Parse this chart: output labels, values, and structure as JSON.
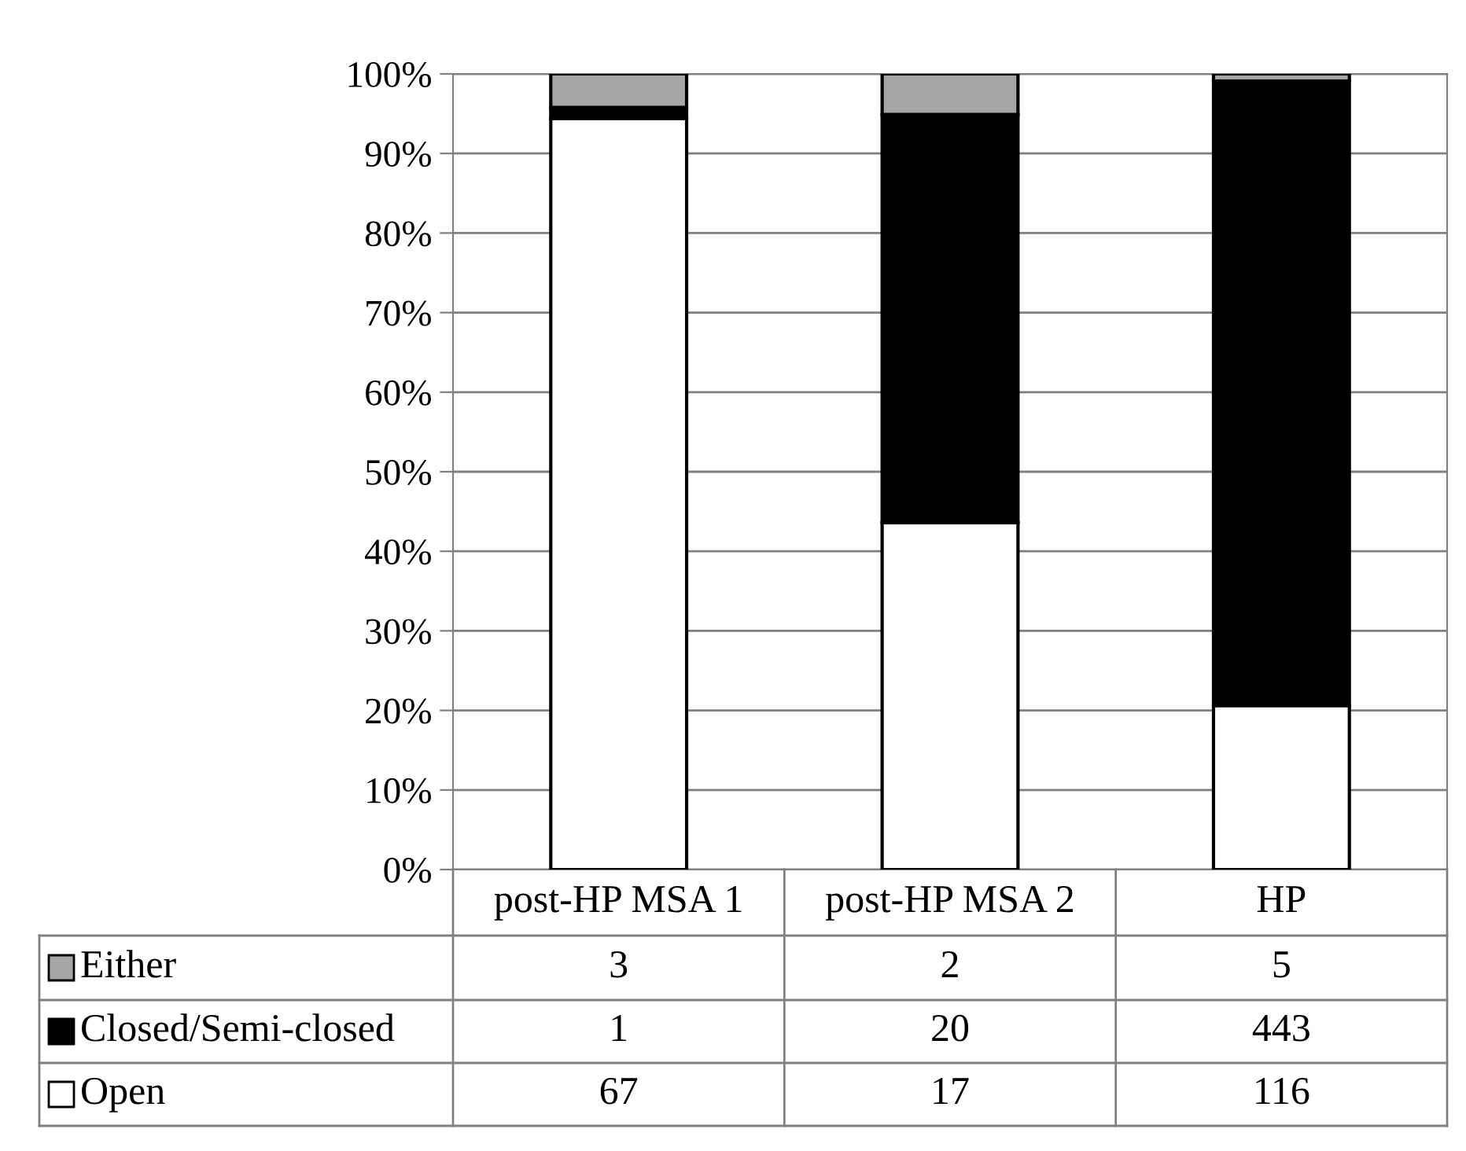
{
  "chart_data": {
    "type": "bar",
    "stacked": true,
    "categories": [
      "post-HP MSA 1",
      "post-HP MSA 2",
      "HP"
    ],
    "series": [
      {
        "name": "Open",
        "color": "#ffffff",
        "values": [
          94.4,
          43.6,
          20.6
        ]
      },
      {
        "name": "Closed/Semi-closed",
        "color": "#000000",
        "values": [
          1.4,
          51.3,
          78.5
        ]
      },
      {
        "name": "Either",
        "color": "#a6a6a6",
        "values": [
          4.2,
          5.1,
          0.9
        ]
      }
    ],
    "annotations": [
      "3",
      "2",
      "5",
      "1",
      "20",
      "443",
      "67",
      "17",
      "116"
    ],
    "ylim": [
      0,
      100
    ],
    "yticks": [
      {
        "value": 0,
        "label": "0%"
      },
      {
        "value": 10,
        "label": "10%"
      },
      {
        "value": 20,
        "label": "20%"
      },
      {
        "value": 30,
        "label": "30%"
      },
      {
        "value": 40,
        "label": "40%"
      },
      {
        "value": 50,
        "label": "50%"
      },
      {
        "value": 60,
        "label": "60%"
      },
      {
        "value": 70,
        "label": "70%"
      },
      {
        "value": 80,
        "label": "80%"
      },
      {
        "value": 90,
        "label": "90%"
      },
      {
        "value": 100,
        "label": "100%"
      }
    ],
    "grid": "y",
    "legend": "bottom",
    "tick_labels": "y"
  }
}
